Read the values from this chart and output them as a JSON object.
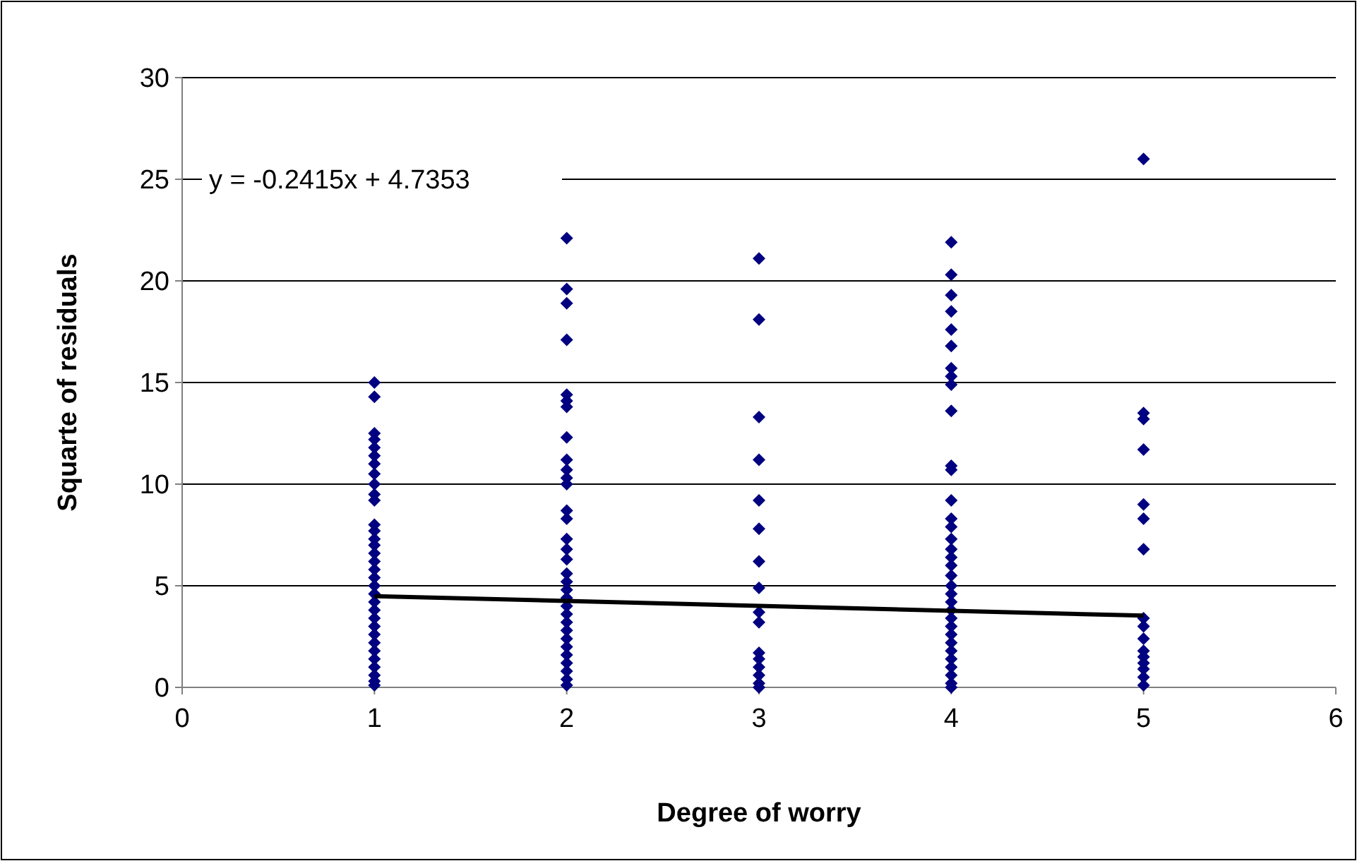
{
  "chart_data": {
    "type": "scatter",
    "xlabel": "Degree of worry",
    "ylabel": "Squarte of residuals",
    "xlim": [
      0,
      6
    ],
    "xticks": [
      0,
      1,
      2,
      3,
      4,
      5,
      6
    ],
    "ylim": [
      0,
      30
    ],
    "yticks": [
      0,
      5,
      10,
      15,
      20,
      25,
      30
    ],
    "grid": "y",
    "marker": "diamond",
    "annotations": [
      "y = -0.2415x + 4.7353"
    ],
    "series": [
      {
        "color": "#000080",
        "x": [
          1,
          1,
          1,
          1,
          1,
          1,
          1,
          1,
          1,
          1,
          1,
          1,
          1,
          1,
          1,
          1,
          1,
          1,
          1,
          1,
          1,
          1,
          1,
          1,
          1,
          1,
          1,
          1,
          1,
          1,
          1,
          1,
          1
        ],
        "values": [
          15.0,
          14.3,
          12.5,
          12.2,
          11.8,
          11.4,
          11.0,
          10.5,
          10.0,
          9.5,
          9.2,
          8.0,
          7.7,
          7.3,
          7.0,
          6.6,
          6.2,
          5.8,
          5.4,
          5.0,
          4.6,
          4.2,
          3.8,
          3.4,
          3.0,
          2.6,
          2.2,
          1.8,
          1.4,
          1.0,
          0.6,
          0.3,
          0.1
        ]
      },
      {
        "color": "#000080",
        "x": [
          2,
          2,
          2,
          2,
          2,
          2,
          2,
          2,
          2,
          2,
          2,
          2,
          2,
          2,
          2,
          2,
          2,
          2,
          2,
          2,
          2,
          2,
          2,
          2,
          2,
          2,
          2,
          2,
          2,
          2,
          2,
          2
        ],
        "values": [
          22.1,
          19.6,
          18.9,
          17.1,
          14.4,
          14.1,
          13.8,
          12.3,
          11.2,
          10.7,
          10.3,
          10.0,
          8.7,
          8.3,
          7.3,
          6.8,
          6.3,
          5.6,
          5.2,
          4.8,
          4.4,
          4.0,
          3.6,
          3.2,
          2.8,
          2.4,
          2.0,
          1.6,
          1.2,
          0.8,
          0.4,
          0.1
        ]
      },
      {
        "color": "#000080",
        "x": [
          3,
          3,
          3,
          3,
          3,
          3,
          3,
          3,
          3,
          3,
          3,
          3,
          3,
          3,
          3,
          3
        ],
        "values": [
          21.1,
          18.1,
          13.3,
          11.2,
          9.2,
          7.8,
          6.2,
          4.9,
          3.7,
          3.2,
          1.7,
          1.4,
          1.0,
          0.6,
          0.2,
          0.0
        ]
      },
      {
        "color": "#000080",
        "x": [
          4,
          4,
          4,
          4,
          4,
          4,
          4,
          4,
          4,
          4,
          4,
          4,
          4,
          4,
          4,
          4,
          4,
          4,
          4,
          4,
          4,
          4,
          4,
          4,
          4,
          4,
          4,
          4,
          4,
          4,
          4,
          4,
          4,
          4
        ],
        "values": [
          21.9,
          20.3,
          19.3,
          18.5,
          17.6,
          16.8,
          15.7,
          15.3,
          14.9,
          13.6,
          10.9,
          10.7,
          9.2,
          8.3,
          7.9,
          7.3,
          6.8,
          6.4,
          6.0,
          5.5,
          5.0,
          4.6,
          4.2,
          3.8,
          3.4,
          3.0,
          2.6,
          2.2,
          1.8,
          1.4,
          1.0,
          0.6,
          0.2,
          0.0
        ]
      },
      {
        "color": "#000080",
        "x": [
          5,
          5,
          5,
          5,
          5,
          5,
          5,
          5,
          5,
          5,
          5,
          5,
          5,
          5,
          5,
          5
        ],
        "values": [
          26.0,
          13.5,
          13.2,
          11.7,
          9.0,
          8.3,
          6.8,
          3.4,
          3.0,
          2.4,
          1.8,
          1.5,
          1.2,
          0.9,
          0.5,
          0.1
        ]
      },
      {
        "type": "line",
        "color": "#000000",
        "marker": "none",
        "x": [
          1,
          5
        ],
        "values": [
          4.49,
          3.53
        ]
      }
    ]
  }
}
